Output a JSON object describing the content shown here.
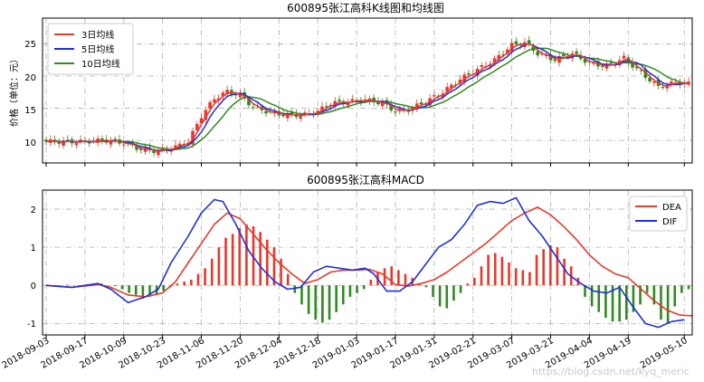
{
  "chart_data": [
    {
      "type": "candlestick",
      "title": "600895张江高科K线图和均线图",
      "ylabel": "价格（单位：元）",
      "ylim": [
        6.5,
        29
      ],
      "yticks": [
        "10",
        "15",
        "20",
        "25"
      ],
      "grid": true,
      "legend_placement": "top-left",
      "series": [
        {
          "name": "3日均线",
          "color": "#e8392a"
        },
        {
          "name": "5日均线",
          "color": "#1f2fe0"
        },
        {
          "name": "10日均线",
          "color": "#2f8a1e"
        }
      ]
    },
    {
      "type": "line+bar",
      "title": "600895张江高科MACD",
      "ylim": [
        -1.3,
        2.5
      ],
      "yticks": [
        "-1",
        "0",
        "1",
        "2"
      ],
      "xticks": [
        "2018-09-03",
        "2018-09-17",
        "2018-10-09",
        "2018-10-23",
        "2018-11-06",
        "2018-11-20",
        "2018-12-04",
        "2018-12-18",
        "2019-01-03",
        "2019-01-17",
        "2019-01-31",
        "2019-02-21",
        "2019-03-07",
        "2019-03-21",
        "2019-04-04",
        "2019-04-19",
        "2019-05-10"
      ],
      "grid": true,
      "legend_placement": "top-right",
      "series": [
        {
          "name": "DEA",
          "color": "#e8392a"
        },
        {
          "name": "DIF",
          "color": "#1f2fe0"
        }
      ],
      "dea": [
        [
          0,
          0
        ],
        [
          6,
          -0.05
        ],
        [
          12,
          0.02
        ],
        [
          15,
          -0.05
        ],
        [
          19,
          -0.25
        ],
        [
          23,
          -0.3
        ],
        [
          27,
          -0.2
        ],
        [
          30,
          0.1
        ],
        [
          33,
          0.6
        ],
        [
          36,
          1.1
        ],
        [
          39,
          1.6
        ],
        [
          42,
          1.9
        ],
        [
          45,
          1.75
        ],
        [
          48,
          1.35
        ],
        [
          51,
          0.95
        ],
        [
          54,
          0.6
        ],
        [
          57,
          0.3
        ],
        [
          60,
          0.05
        ],
        [
          63,
          0.15
        ],
        [
          66,
          0.35
        ],
        [
          69,
          0.4
        ],
        [
          72,
          0.4
        ],
        [
          75,
          0.42
        ],
        [
          78,
          0.3
        ],
        [
          81,
          0.02
        ],
        [
          84,
          -0.02
        ],
        [
          87,
          0.05
        ],
        [
          90,
          0.15
        ],
        [
          93,
          0.35
        ],
        [
          96,
          0.6
        ],
        [
          99,
          0.85
        ],
        [
          102,
          1.1
        ],
        [
          105,
          1.4
        ],
        [
          108,
          1.7
        ],
        [
          111,
          1.9
        ],
        [
          114,
          2.05
        ],
        [
          117,
          1.85
        ],
        [
          120,
          1.55
        ],
        [
          123,
          1.2
        ],
        [
          126,
          0.8
        ],
        [
          129,
          0.5
        ],
        [
          132,
          0.3
        ],
        [
          135,
          0.2
        ],
        [
          138,
          -0.1
        ],
        [
          141,
          -0.4
        ],
        [
          144,
          -0.65
        ],
        [
          147,
          -0.78
        ],
        [
          150,
          -0.8
        ]
      ],
      "dif": [
        [
          0,
          0
        ],
        [
          6,
          -0.05
        ],
        [
          12,
          0.05
        ],
        [
          15,
          -0.1
        ],
        [
          19,
          -0.45
        ],
        [
          23,
          -0.3
        ],
        [
          26,
          -0.1
        ],
        [
          29,
          0.6
        ],
        [
          33,
          1.3
        ],
        [
          36,
          1.9
        ],
        [
          39,
          2.25
        ],
        [
          41,
          2.2
        ],
        [
          44,
          1.6
        ],
        [
          47,
          0.9
        ],
        [
          50,
          0.45
        ],
        [
          53,
          0.1
        ],
        [
          56,
          -0.1
        ],
        [
          59,
          -0.05
        ],
        [
          62,
          0.35
        ],
        [
          65,
          0.5
        ],
        [
          68,
          0.45
        ],
        [
          71,
          0.4
        ],
        [
          74,
          0.45
        ],
        [
          76,
          0.3
        ],
        [
          79,
          -0.15
        ],
        [
          82,
          -0.15
        ],
        [
          85,
          0.1
        ],
        [
          88,
          0.55
        ],
        [
          91,
          1.0
        ],
        [
          94,
          1.2
        ],
        [
          97,
          1.6
        ],
        [
          100,
          2.1
        ],
        [
          103,
          2.2
        ],
        [
          106,
          2.15
        ],
        [
          109,
          2.3
        ],
        [
          112,
          1.7
        ],
        [
          115,
          1.3
        ],
        [
          118,
          0.8
        ],
        [
          121,
          0.3
        ],
        [
          124,
          0.05
        ],
        [
          127,
          -0.15
        ],
        [
          130,
          -0.2
        ],
        [
          133,
          -0.05
        ],
        [
          136,
          -0.55
        ],
        [
          139,
          -1.0
        ],
        [
          142,
          -1.1
        ],
        [
          145,
          -0.95
        ],
        [
          148,
          -0.9
        ]
      ],
      "hist": [
        0,
        0,
        0,
        0.02,
        0,
        0,
        0.03,
        0.05,
        0.05,
        0,
        -0.02,
        -0.1,
        -0.2,
        -0.25,
        -0.35,
        -0.3,
        -0.25,
        -0.15,
        -0.05,
        0.05,
        0.1,
        0.15,
        0.3,
        0.45,
        0.7,
        1.0,
        1.25,
        1.35,
        1.5,
        1.6,
        1.55,
        1.4,
        1.2,
        1.0,
        0.7,
        0.3,
        -0.2,
        -0.5,
        -0.75,
        -0.9,
        -0.98,
        -0.9,
        -0.7,
        -0.5,
        -0.3,
        -0.2,
        -0.1,
        0.15,
        0.35,
        0.45,
        0.5,
        0.4,
        0.3,
        0.2,
        0.05,
        -0.05,
        -0.3,
        -0.55,
        -0.6,
        -0.4,
        -0.2,
        0.05,
        0.2,
        0.5,
        0.8,
        0.85,
        0.75,
        0.6,
        0.45,
        0.4,
        0.35,
        0.8,
        0.95,
        1.05,
        1.0,
        0.7,
        0.5,
        0.2,
        -0.3,
        -0.55,
        -0.7,
        -0.85,
        -0.95,
        -0.95,
        -0.9,
        -0.7,
        -0.5,
        -0.2,
        -0.5,
        -0.9,
        -1.0,
        -0.55,
        -0.2,
        -0.1
      ]
    }
  ],
  "watermark": "https://blog.csdn.net/kyq_meric"
}
